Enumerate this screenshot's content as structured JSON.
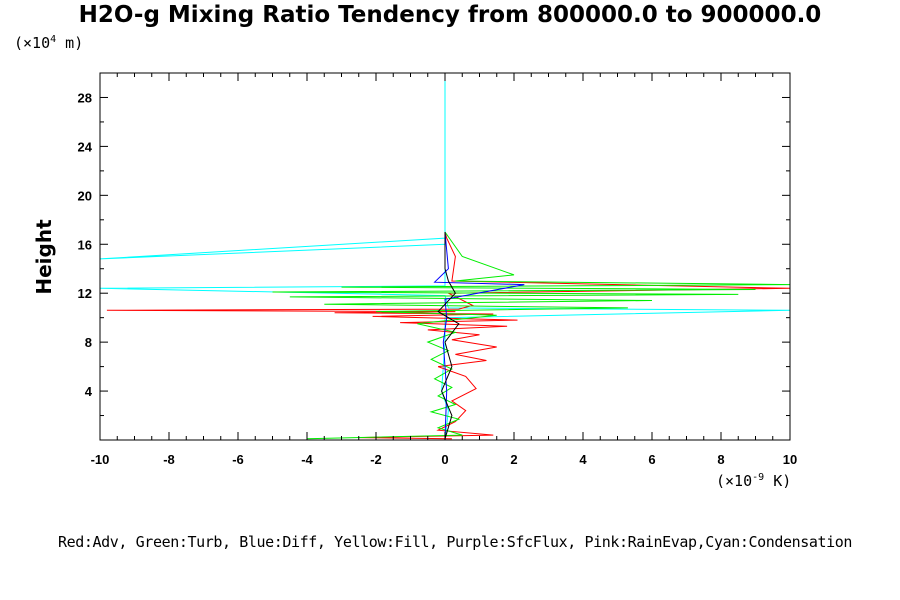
{
  "chart_data": {
    "type": "line",
    "title": "H2O-g Mixing Ratio Tendency from 800000.0 to 900000.0",
    "ylabel": "Height",
    "yunit_base": "(×10",
    "yunit_exp": "4",
    "yunit_tail": " m)",
    "xunit_base": "(×10",
    "xunit_exp": "-9",
    "xunit_tail": " K)",
    "xlim": [
      -10,
      10
    ],
    "ylim": [
      0,
      30
    ],
    "xticks": [
      "-10",
      "-8",
      "-6",
      "-4",
      "-2",
      "0",
      "2",
      "4",
      "6",
      "8",
      "10"
    ],
    "yticks": [
      "4",
      "8",
      "12",
      "16",
      "20",
      "24",
      "28"
    ],
    "legend_text": "Red:Adv, Green:Turb, Blue:Diff, Yellow:Fill, Purple:SfcFlux, Pink:RainEvap,Cyan:Condensation",
    "series": [
      {
        "name": "Adv",
        "color": "#ff0000"
      },
      {
        "name": "Turb",
        "color": "#00ee00"
      },
      {
        "name": "Diff",
        "color": "#0000ff"
      },
      {
        "name": "Fill",
        "color": "#ffff00"
      },
      {
        "name": "SfcFlux",
        "color": "#a020f0"
      },
      {
        "name": "RainEvap",
        "color": "#ff69b4"
      },
      {
        "name": "Condensation",
        "color": "#00ffff"
      },
      {
        "name": "Total",
        "color": "#000000"
      }
    ],
    "profiles": {
      "Adv": [
        [
          0.2,
          0.1
        ],
        [
          -2.5,
          0.2
        ],
        [
          1.4,
          0.4
        ],
        [
          -0.2,
          0.8
        ],
        [
          0.3,
          1.5
        ],
        [
          0.6,
          2.4
        ],
        [
          0.2,
          3.2
        ],
        [
          0.9,
          4.2
        ],
        [
          0.6,
          5.2
        ],
        [
          -0.2,
          6.0
        ],
        [
          1.2,
          6.5
        ],
        [
          0.3,
          7.0
        ],
        [
          1.5,
          7.6
        ],
        [
          0.2,
          8.2
        ],
        [
          1.0,
          8.6
        ],
        [
          -0.5,
          9.0
        ],
        [
          1.8,
          9.3
        ],
        [
          -1.3,
          9.6
        ],
        [
          2.1,
          9.8
        ],
        [
          -2.1,
          10.1
        ],
        [
          1.4,
          10.3
        ],
        [
          -3.2,
          10.4
        ],
        [
          0.3,
          10.5
        ],
        [
          -9.8,
          10.6
        ],
        [
          0.4,
          10.7
        ],
        [
          0.8,
          11.0
        ],
        [
          0.1,
          12.0
        ],
        [
          10.0,
          12.4
        ],
        [
          0.2,
          13.0
        ],
        [
          0.3,
          15.0
        ],
        [
          0.05,
          16.5
        ],
        [
          0.0,
          17.0
        ]
      ],
      "Turb": [
        [
          -4.0,
          0.1
        ],
        [
          0.5,
          0.4
        ],
        [
          -0.2,
          1.0
        ],
        [
          0.4,
          1.7
        ],
        [
          -0.4,
          2.3
        ],
        [
          0.3,
          2.9
        ],
        [
          -0.2,
          3.6
        ],
        [
          0.2,
          4.3
        ],
        [
          -0.3,
          5.0
        ],
        [
          0.2,
          5.8
        ],
        [
          -0.4,
          6.6
        ],
        [
          0.1,
          7.3
        ],
        [
          -0.5,
          8.0
        ],
        [
          0.3,
          8.8
        ],
        [
          -0.8,
          9.5
        ],
        [
          1.5,
          10.2
        ],
        [
          -2.0,
          10.5
        ],
        [
          5.3,
          10.8
        ],
        [
          -3.5,
          11.1
        ],
        [
          6.0,
          11.4
        ],
        [
          -4.5,
          11.7
        ],
        [
          8.5,
          11.9
        ],
        [
          -5.0,
          12.1
        ],
        [
          9.0,
          12.3
        ],
        [
          -3.0,
          12.5
        ],
        [
          10.0,
          12.7
        ],
        [
          0.3,
          13.0
        ],
        [
          2.0,
          13.5
        ],
        [
          0.5,
          15.0
        ],
        [
          0.0,
          17.0
        ]
      ],
      "Diff": [
        [
          0.0,
          0.1
        ],
        [
          0.05,
          4.0
        ],
        [
          -0.05,
          8.0
        ],
        [
          0.05,
          10.0
        ],
        [
          0.0,
          11.5
        ],
        [
          2.3,
          12.7
        ],
        [
          -0.3,
          12.9
        ],
        [
          0.1,
          14.0
        ],
        [
          0.0,
          17.0
        ]
      ],
      "Condensation": [
        [
          0.0,
          0.0
        ],
        [
          0.1,
          2.4
        ],
        [
          -0.1,
          4.0
        ],
        [
          0.0,
          8.0
        ],
        [
          0.0,
          10.0
        ],
        [
          10.0,
          10.6
        ],
        [
          0.1,
          10.8
        ],
        [
          0.0,
          11.8
        ],
        [
          -10.0,
          12.4
        ],
        [
          0.0,
          12.6
        ],
        [
          0.0,
          16.0
        ],
        [
          -10.0,
          14.8
        ],
        [
          0.0,
          16.5
        ],
        [
          0.0,
          30.0
        ]
      ],
      "Total": [
        [
          0.0,
          0.1
        ],
        [
          0.2,
          2.0
        ],
        [
          -0.1,
          4.0
        ],
        [
          0.2,
          6.0
        ],
        [
          0.0,
          8.0
        ],
        [
          0.4,
          9.5
        ],
        [
          -0.2,
          10.5
        ],
        [
          0.3,
          12.0
        ],
        [
          0.1,
          13.0
        ],
        [
          0.0,
          14.0
        ],
        [
          0.0,
          17.0
        ]
      ]
    }
  }
}
